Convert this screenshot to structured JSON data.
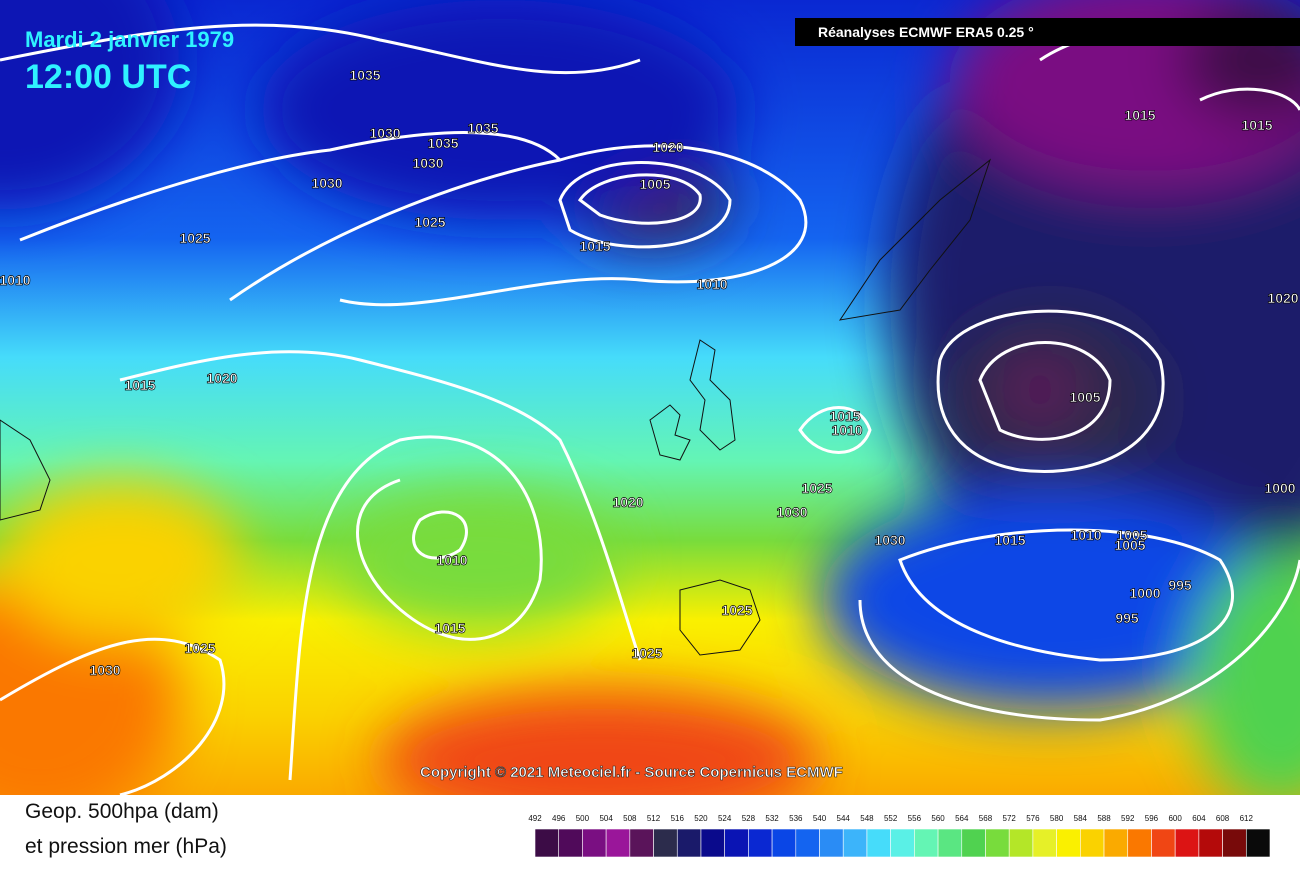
{
  "header": {
    "date": "Mardi 2 janvier 1979",
    "time": "12:00 UTC",
    "source": "Réanalyses ECMWF ERA5 0.25 °"
  },
  "copyright": "Copyright © 2021 Meteociel.fr - Source Copernicus ECMWF",
  "legend": {
    "title_line1": "Geop. 500hpa (dam)",
    "title_line2": "et pression mer (hPa)",
    "values": [
      492,
      496,
      500,
      504,
      508,
      512,
      516,
      520,
      524,
      528,
      532,
      536,
      540,
      544,
      548,
      552,
      556,
      560,
      564,
      568,
      572,
      576,
      580,
      584,
      588,
      592,
      596,
      600,
      604,
      608,
      612
    ],
    "colors": [
      "#3c0c46",
      "#500a5a",
      "#7a0f82",
      "#9a169a",
      "#5a145a",
      "#2c2c4c",
      "#1a1a6a",
      "#0a0a8c",
      "#0a14b4",
      "#0a28d2",
      "#0a46e6",
      "#1464f0",
      "#2a8cf5",
      "#3cb4fa",
      "#46dcfa",
      "#5af0e6",
      "#64f5b4",
      "#5ae682",
      "#50d250",
      "#78dc3c",
      "#b4e628",
      "#e6f028",
      "#faf000",
      "#fad200",
      "#faaa00",
      "#fa7800",
      "#f04614",
      "#dc1414",
      "#b40a0a",
      "#780a0a",
      "#0a0a0a"
    ]
  },
  "isobar_labels": [
    1035,
    1030,
    1035,
    1035,
    1030,
    1030,
    1020,
    1005,
    1025,
    1025,
    1015,
    1010,
    1010,
    1015,
    1020,
    1015,
    1010,
    1005,
    1025,
    1030,
    1020,
    1010,
    1030,
    1015,
    1010,
    1005,
    1005,
    1000,
    995,
    1000,
    995,
    1025,
    1015,
    1025,
    1025,
    1030,
    1015,
    1015,
    1020
  ]
}
